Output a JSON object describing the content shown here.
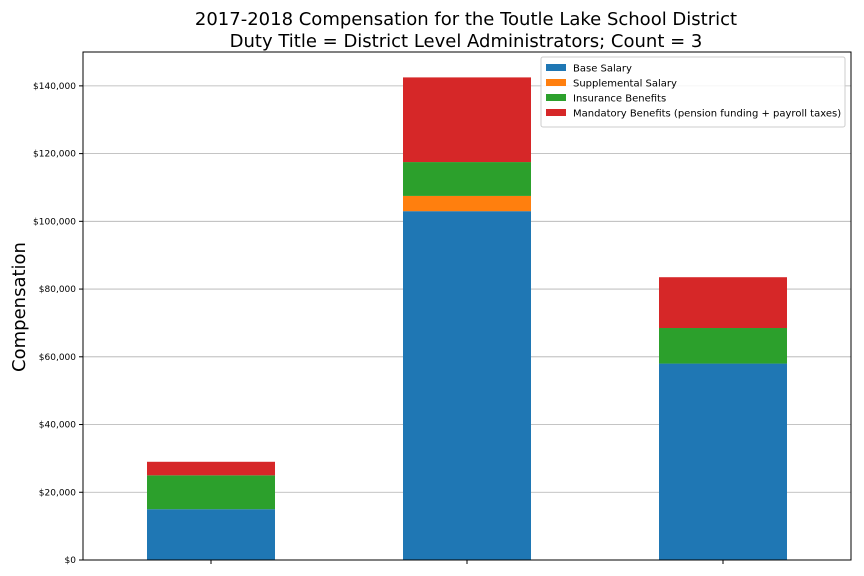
{
  "chart_data": {
    "type": "bar",
    "stacked": true,
    "title": "2017-2018 Compensation for the Toutle Lake School District",
    "subtitle": "Duty Title = District Level Administrators; Count = 3",
    "xlabel": "",
    "ylabel": "Compensation",
    "categories": [
      "",
      "",
      ""
    ],
    "ylim": [
      0,
      150000
    ],
    "yticks": [
      0,
      20000,
      40000,
      60000,
      80000,
      100000,
      120000,
      140000
    ],
    "ytick_labels": [
      "$0",
      "$20,000",
      "$40,000",
      "$60,000",
      "$80,000",
      "$100,000",
      "$120,000",
      "$140,000"
    ],
    "grid": "horizontal",
    "legend_position": "top-right",
    "series": [
      {
        "name": "Base Salary",
        "color": "#1f77b4",
        "values": [
          15000,
          103000,
          58000
        ]
      },
      {
        "name": "Supplemental Salary",
        "color": "#ff7f0e",
        "values": [
          0,
          4500,
          0
        ]
      },
      {
        "name": "Insurance Benefits",
        "color": "#2ca02c",
        "values": [
          10000,
          10000,
          10500
        ]
      },
      {
        "name": "Mandatory Benefits (pension funding + payroll taxes)",
        "color": "#d62728",
        "values": [
          4000,
          25000,
          15000
        ]
      }
    ]
  }
}
